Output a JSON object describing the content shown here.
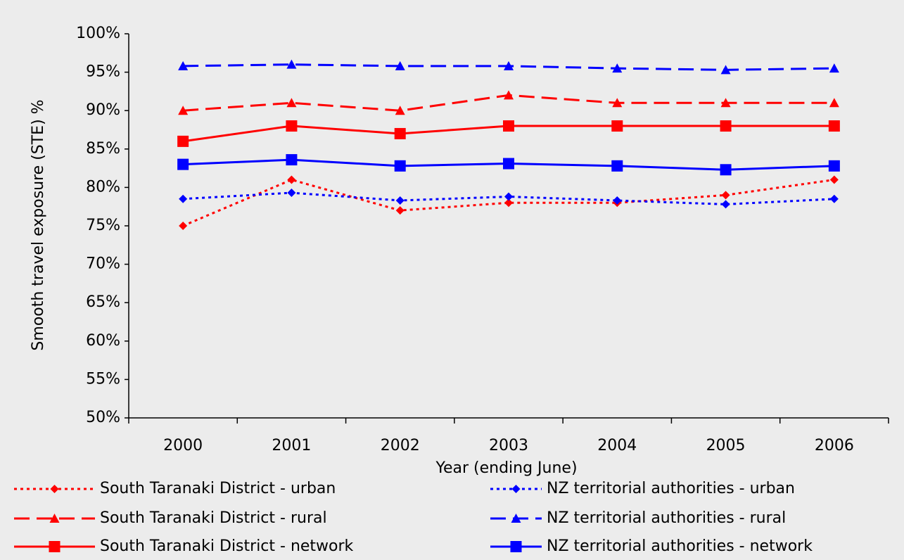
{
  "chart_data": {
    "type": "line",
    "x_label": "Year (ending June)",
    "y_label": "Smooth travel exposure (STE) %",
    "categories": [
      "2000",
      "2001",
      "2002",
      "2003",
      "2004",
      "2005",
      "2006"
    ],
    "ylim": [
      50,
      100
    ],
    "yticks": [
      {
        "value": 50,
        "label": "50%"
      },
      {
        "value": 55,
        "label": "55%"
      },
      {
        "value": 60,
        "label": "60%"
      },
      {
        "value": 65,
        "label": "65%"
      },
      {
        "value": 70,
        "label": "70%"
      },
      {
        "value": 75,
        "label": "75%"
      },
      {
        "value": 80,
        "label": "80%"
      },
      {
        "value": 85,
        "label": "85%"
      },
      {
        "value": 90,
        "label": "90%"
      },
      {
        "value": 95,
        "label": "95%"
      },
      {
        "value": 100,
        "label": "100%"
      }
    ],
    "grid": false,
    "legend": "bottom",
    "series": [
      {
        "name": "South Taranaki District - urban",
        "color": "#ff0000",
        "dash": "dotted",
        "marker": "diamond",
        "values": [
          75,
          81,
          77,
          78,
          78,
          79,
          81
        ]
      },
      {
        "name": "NZ territorial authorities - urban",
        "color": "#0000ff",
        "dash": "dotted",
        "marker": "diamond",
        "values": [
          78.5,
          79.3,
          78.3,
          78.8,
          78.3,
          77.8,
          78.5
        ]
      },
      {
        "name": "South Taranaki District - rural",
        "color": "#ff0000",
        "dash": "dashed",
        "marker": "triangle",
        "values": [
          90,
          91,
          90,
          92,
          91,
          91,
          91
        ]
      },
      {
        "name": "NZ territorial authorities - rural",
        "color": "#0000ff",
        "dash": "dashed",
        "marker": "triangle",
        "values": [
          95.8,
          96,
          95.8,
          95.8,
          95.5,
          95.3,
          95.5
        ]
      },
      {
        "name": "South Taranaki District - network",
        "color": "#ff0000",
        "dash": "solid",
        "marker": "square",
        "values": [
          86,
          88,
          87,
          88,
          88,
          88,
          88
        ]
      },
      {
        "name": "NZ territorial authorities - network",
        "color": "#0000ff",
        "dash": "solid",
        "marker": "square",
        "values": [
          83,
          83.6,
          82.8,
          83.1,
          82.8,
          82.3,
          82.8
        ]
      }
    ]
  }
}
